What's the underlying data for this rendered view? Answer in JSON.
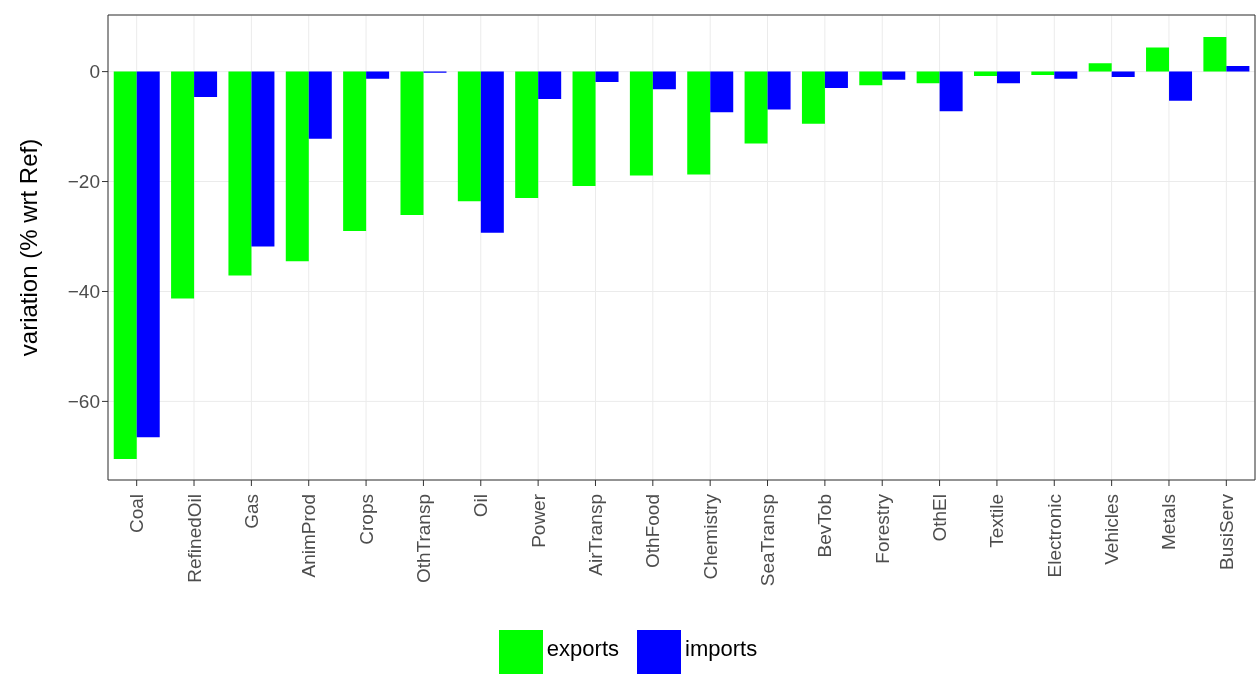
{
  "chart_data": {
    "type": "bar",
    "ylabel": "variation (% wrt Ref)",
    "categories": [
      "Coal",
      "RefinedOil",
      "Gas",
      "AnimProd",
      "Crops",
      "OthTransp",
      "Oil",
      "Power",
      "AirTransp",
      "OthFood",
      "Chemistry",
      "SeaTransp",
      "BevTob",
      "Forestry",
      "OthEl",
      "Textile",
      "Electronic",
      "Vehicles",
      "Metals",
      "BusiServ"
    ],
    "series": [
      {
        "name": "exports",
        "color": "#00ff00",
        "values": [
          -70.5,
          -41.3,
          -37.1,
          -34.5,
          -29.0,
          -26.1,
          -23.6,
          -23.0,
          -20.8,
          -18.9,
          -18.7,
          -13.1,
          -9.5,
          -2.5,
          -2.1,
          -0.8,
          -0.6,
          1.5,
          4.4,
          6.3
        ]
      },
      {
        "name": "imports",
        "color": "#0000ff",
        "values": [
          -66.5,
          -4.6,
          -31.8,
          -12.2,
          -1.3,
          -0.2,
          -29.3,
          -5.0,
          -1.9,
          -3.2,
          -7.4,
          -6.9,
          -3.0,
          -1.5,
          -7.2,
          -2.1,
          -1.3,
          -1.0,
          -5.3,
          1.0
        ]
      }
    ],
    "ylim": [
      -74.3,
      10.3
    ],
    "yticks": [
      -60,
      -40,
      -20,
      0
    ],
    "grid": true,
    "legend": "bottom"
  }
}
